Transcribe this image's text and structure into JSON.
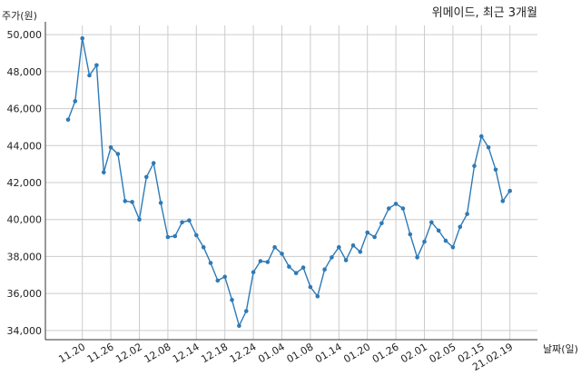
{
  "chart_data": {
    "type": "line",
    "title": "위메이드, 최근 3개월",
    "ylabel": "주가(원)",
    "xlabel": "날짜(일)",
    "ylim": [
      33500,
      50500
    ],
    "yticks": [
      34000,
      36000,
      38000,
      40000,
      42000,
      44000,
      46000,
      48000,
      50000
    ],
    "ytick_labels": [
      "34,000",
      "36,000",
      "38,000",
      "40,000",
      "42,000",
      "44,000",
      "46,000",
      "48,000",
      "50,000"
    ],
    "grid": true,
    "colors": {
      "line": "#2e7ab6",
      "grid": "#cccccc",
      "axis": "#333333"
    },
    "xtick_labels": [
      "11.20",
      "11.26",
      "12.02",
      "12.08",
      "12.14",
      "12.18",
      "12.24",
      "01.04",
      "01.08",
      "01.14",
      "01.20",
      "01.26",
      "02.01",
      "02.05",
      "02.15",
      "21.02.19"
    ],
    "xtick_index": [
      2,
      6,
      10,
      14,
      18,
      22,
      26,
      30,
      34,
      38,
      42,
      46,
      50,
      54,
      58,
      62
    ],
    "x": [
      "11.18",
      "11.19",
      "11.20",
      "11.23",
      "11.24",
      "11.25",
      "11.26",
      "11.27",
      "11.30",
      "12.01",
      "12.02",
      "12.03",
      "12.04",
      "12.07",
      "12.08",
      "12.09",
      "12.10",
      "12.11",
      "12.14",
      "12.15",
      "12.16",
      "12.17",
      "12.18",
      "12.21",
      "12.22",
      "12.23",
      "12.24",
      "12.28",
      "12.29",
      "12.30",
      "01.04",
      "01.05",
      "01.06",
      "01.07",
      "01.08",
      "01.11",
      "01.12",
      "01.13",
      "01.14",
      "01.15",
      "01.18",
      "01.19",
      "01.20",
      "01.21",
      "01.22",
      "01.25",
      "01.26",
      "01.27",
      "01.28",
      "01.29",
      "02.01",
      "02.02",
      "02.03",
      "02.04",
      "02.05",
      "02.08",
      "02.09",
      "02.10",
      "02.15",
      "02.16",
      "02.17",
      "02.18",
      "02.19"
    ],
    "series": [
      {
        "values": [
          45400,
          46400,
          49800,
          47800,
          48350,
          42550,
          43900,
          43550,
          41000,
          40950,
          40000,
          42300,
          43050,
          40900,
          39050,
          39100,
          39850,
          39950,
          39150,
          38500,
          37650,
          36700,
          36900,
          35650,
          34250,
          35050,
          37150,
          37750,
          37700,
          38500,
          38150,
          37450,
          37100,
          37400,
          36350,
          35850,
          37300,
          37950,
          38500,
          37800,
          38600,
          38250,
          39300,
          39050,
          39800,
          40600,
          40850,
          40600,
          39200,
          37950,
          38800,
          39850,
          39400,
          38850,
          38500,
          39600,
          40300,
          42900,
          44500,
          43900,
          42700,
          41000,
          41550
        ]
      }
    ]
  }
}
